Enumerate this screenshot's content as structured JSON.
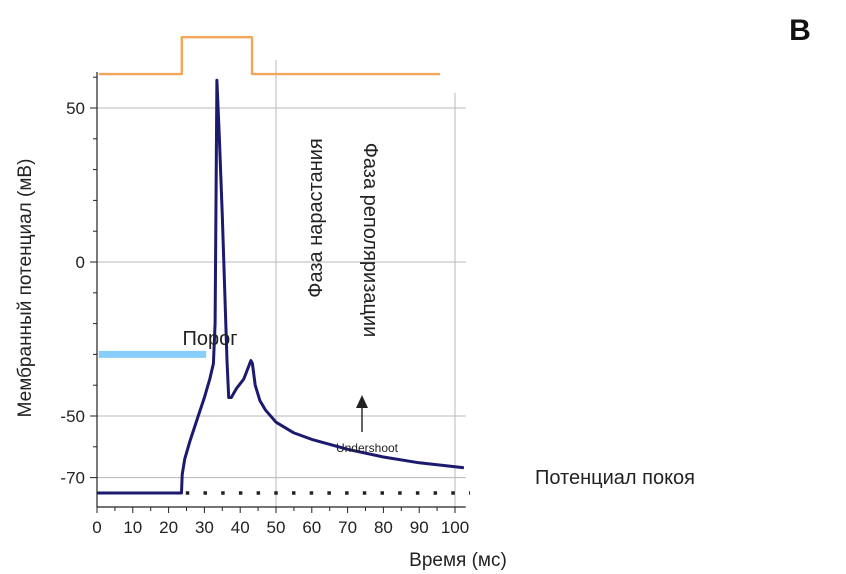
{
  "chart_data": {
    "type": "line",
    "panel_label": "B",
    "xlabel": "Время (мс)",
    "ylabel": "Мембранный потенциал (мВ)",
    "xlim": [
      0,
      103
    ],
    "ylim": [
      -78,
      62
    ],
    "x_ticks": [
      0,
      10,
      20,
      30,
      40,
      50,
      60,
      70,
      80,
      90,
      100
    ],
    "y_ticks": [
      {
        "value": 50,
        "label": "50"
      },
      {
        "value": 0,
        "label": "0"
      },
      {
        "value": -50,
        "label": "-50"
      },
      {
        "value": -70,
        "label": "-70"
      }
    ],
    "grid": "partial",
    "series": [
      {
        "role": "membrane-potential",
        "color": "#1c1a6e",
        "points": [
          [
            0,
            -75
          ],
          [
            23.6,
            -75
          ],
          [
            23.8,
            -69
          ],
          [
            24.5,
            -64
          ],
          [
            26,
            -58
          ],
          [
            28,
            -51
          ],
          [
            30,
            -44
          ],
          [
            31.5,
            -38
          ],
          [
            32.5,
            -33
          ],
          [
            33,
            -20
          ],
          [
            33.5,
            59
          ],
          [
            34.2,
            40
          ],
          [
            35,
            15
          ],
          [
            35.7,
            -10
          ],
          [
            36.3,
            -32
          ],
          [
            36.8,
            -44
          ],
          [
            37.5,
            -44
          ],
          [
            39,
            -41
          ],
          [
            41,
            -38
          ],
          [
            43,
            -32
          ],
          [
            43.4,
            -33
          ],
          [
            44.2,
            -40
          ],
          [
            45.5,
            -45
          ],
          [
            47,
            -48
          ],
          [
            50,
            -52
          ],
          [
            55,
            -55.5
          ],
          [
            60,
            -57.6
          ],
          [
            70,
            -60.8
          ],
          [
            80,
            -63.3
          ],
          [
            90,
            -65.2
          ],
          [
            100,
            -66.5
          ],
          [
            102.5,
            -66.8
          ]
        ]
      },
      {
        "role": "stimulus",
        "color": "#f5a55a",
        "points": [
          [
            0.5,
            61
          ],
          [
            23.7,
            61
          ],
          [
            23.7,
            73
          ],
          [
            43.3,
            73
          ],
          [
            43.3,
            61
          ],
          [
            95.8,
            61
          ]
        ]
      }
    ],
    "threshold": {
      "label": "Порог",
      "y": -30,
      "x_range": [
        0.5,
        30.5
      ],
      "color": "#87cefa"
    },
    "resting": {
      "label": "Потенциал покоя",
      "y": -75,
      "x_range": [
        24.8,
        102.5
      ]
    },
    "annotations": {
      "rising": "Фаза нарастания",
      "repolarization": "Фаза реполяризации",
      "undershoot": "Undershoot"
    }
  }
}
